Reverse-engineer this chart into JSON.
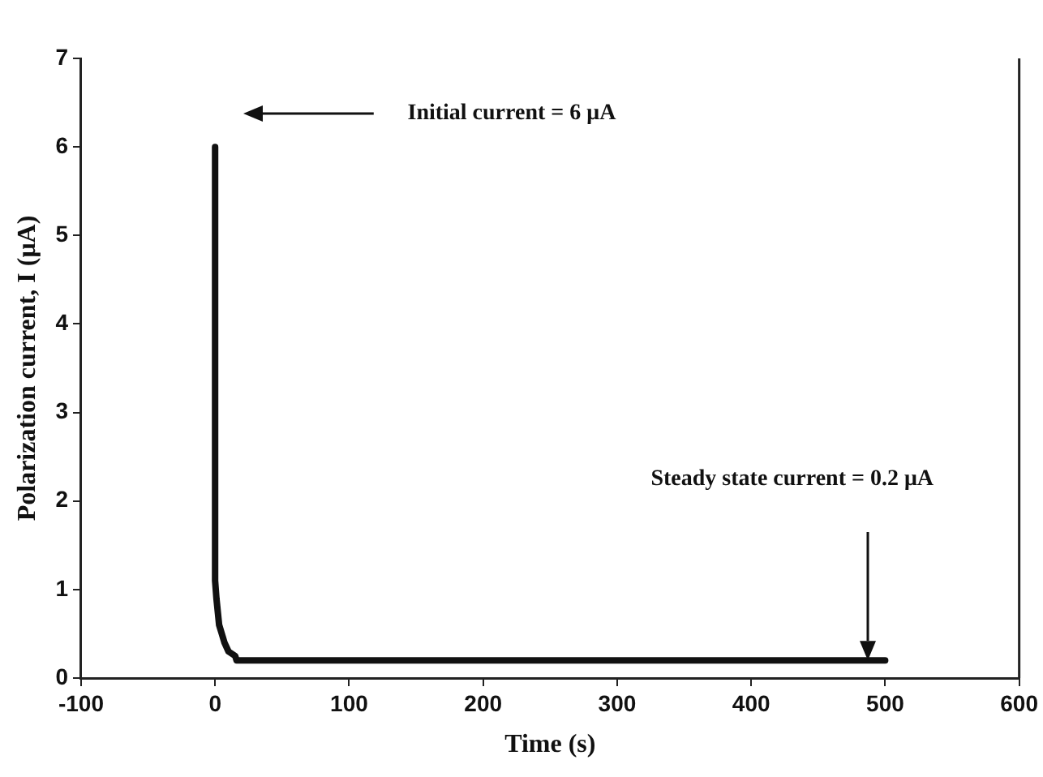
{
  "chart_data": {
    "type": "line",
    "xlabel": "Time (s)",
    "ylabel": "Polarization current, I (μA)",
    "x": [
      0,
      0,
      1,
      3,
      5,
      7,
      10,
      15,
      16,
      500
    ],
    "series": [
      {
        "color": "#111111",
        "values": [
          6,
          1.1,
          0.9,
          0.6,
          0.5,
          0.4,
          0.3,
          0.25,
          0.2,
          0.2
        ]
      }
    ],
    "xlim": [
      -100,
      600
    ],
    "xticks": [
      -100,
      0,
      100,
      200,
      300,
      400,
      500,
      600
    ],
    "ylim": [
      0,
      7
    ],
    "yticks": [
      0,
      1,
      2,
      3,
      4,
      5,
      6,
      7
    ],
    "annotations": [
      "Initial current = 6 μA",
      "Steady state current = 0.2 μA"
    ],
    "grid": false,
    "legend": false,
    "marker": "none",
    "line_style": "solid"
  }
}
